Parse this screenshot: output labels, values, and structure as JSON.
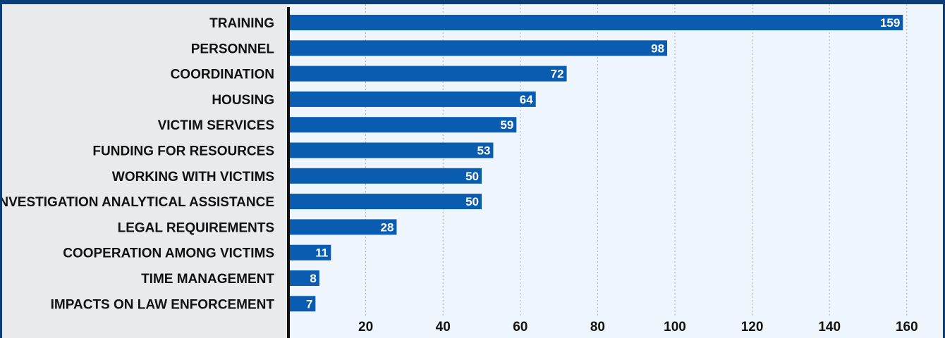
{
  "colors": {
    "bar": "#0a5cb0",
    "plot_background": "#eef5fc",
    "label_background": "#e9eaeb",
    "frame": "#0b3d78",
    "axis": "#111111",
    "grid": "#a8aeb6"
  },
  "chart_data": {
    "type": "bar",
    "orientation": "horizontal",
    "title": "",
    "xlabel": "",
    "ylabel": "",
    "categories": [
      "TRAINING",
      "PERSONNEL",
      "COORDINATION",
      "HOUSING",
      "VICTIM SERVICES",
      "FUNDING FOR RESOURCES",
      "WORKING WITH VICTIMS",
      "INVESTIGATION ANALYTICAL ASSISTANCE",
      "LEGAL REQUIREMENTS",
      "COOPERATION AMONG VICTIMS",
      "TIME MANAGEMENT",
      "IMPACTS ON LAW ENFORCEMENT"
    ],
    "values": [
      159,
      98,
      72,
      64,
      59,
      53,
      50,
      50,
      28,
      11,
      8,
      7
    ],
    "xticks": [
      20,
      40,
      60,
      80,
      100,
      120,
      140,
      160
    ],
    "xlim": [
      0,
      170
    ],
    "grid": "vertical dotted",
    "data_labels": "inside bar end"
  }
}
